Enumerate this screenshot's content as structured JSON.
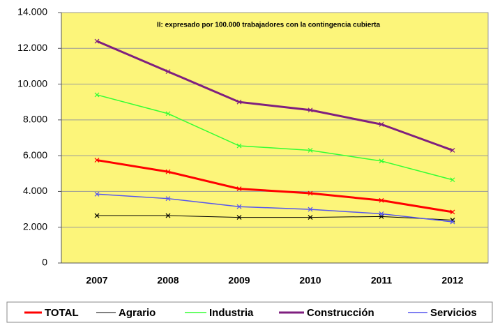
{
  "chart_data": {
    "type": "line",
    "annotation": "II: expresado por 100.000 trabajadores con la contingencia cubierta",
    "categories": [
      "2007",
      "2008",
      "2009",
      "2010",
      "2011",
      "2012"
    ],
    "series": [
      {
        "name": "TOTAL",
        "color": "#ff0000",
        "values": [
          5750,
          5100,
          4150,
          3900,
          3500,
          2850
        ]
      },
      {
        "name": "Agrario",
        "color": "#000000",
        "values": [
          2650,
          2650,
          2550,
          2550,
          2600,
          2400
        ]
      },
      {
        "name": "Industria",
        "color": "#33ff33",
        "values": [
          9400,
          8350,
          6550,
          6300,
          5700,
          4650
        ]
      },
      {
        "name": "Construcción",
        "color": "#7f1f7f",
        "values": [
          12400,
          10700,
          9000,
          8550,
          7750,
          6300
        ]
      },
      {
        "name": "Servicios",
        "color": "#5555ee",
        "values": [
          3850,
          3600,
          3150,
          3000,
          2750,
          2300
        ]
      }
    ],
    "ylim": [
      0,
      14000
    ],
    "yticks": [
      0,
      {
        "value": 2000,
        "label": "2.000"
      },
      {
        "value": 4000,
        "label": "4.000"
      },
      {
        "value": 6000,
        "label": "6.000"
      },
      {
        "value": 8000,
        "label": "8.000"
      },
      {
        "value": 10000,
        "label": "10.000"
      },
      {
        "value": 12000,
        "label": "12.000"
      },
      {
        "value": 14000,
        "label": "14.000"
      }
    ],
    "grid": true,
    "plot_background": "#fcf57a",
    "legend": "bottom"
  }
}
